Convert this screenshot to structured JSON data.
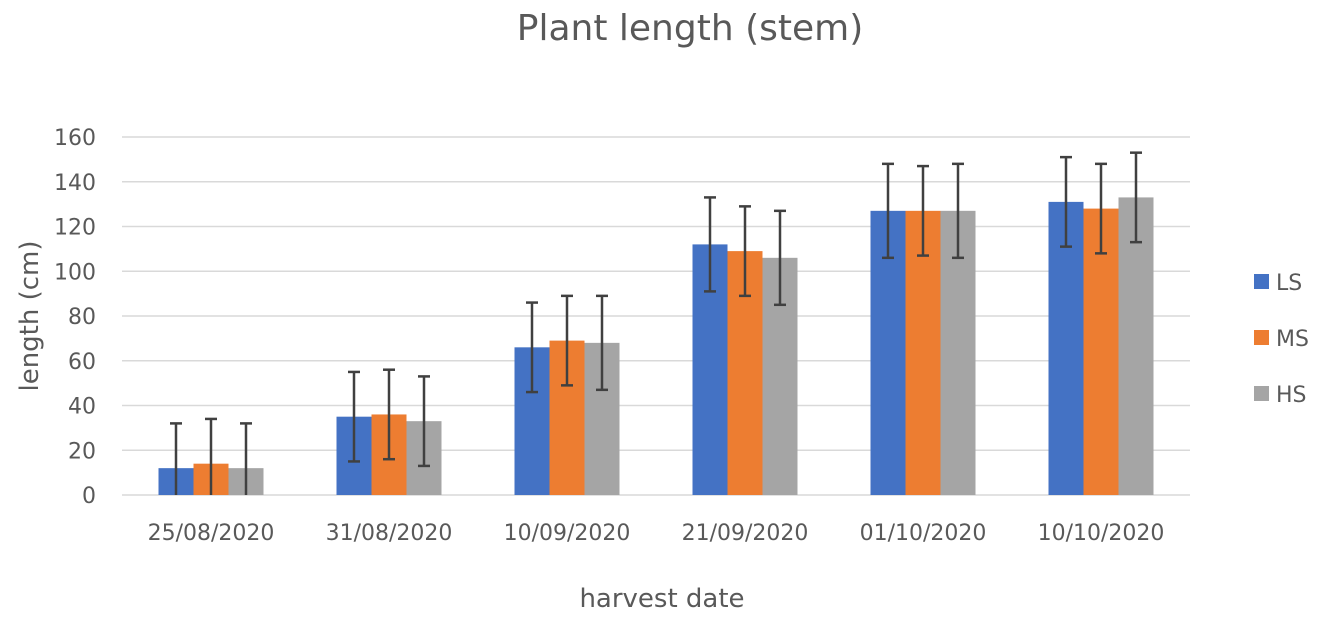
{
  "chart_data": {
    "type": "bar",
    "title": "Plant length (stem)",
    "xlabel": "harvest date",
    "ylabel": "length (cm)",
    "ylim": [
      0,
      160
    ],
    "yticks": [
      0,
      20,
      40,
      60,
      80,
      100,
      120,
      140,
      160
    ],
    "grid": true,
    "legend_position": "right",
    "categories": [
      "25/08/2020",
      "31/08/2020",
      "10/09/2020",
      "21/09/2020",
      "01/10/2020",
      "10/10/2020"
    ],
    "series": [
      {
        "name": "LS",
        "color": "#4472c4",
        "values": [
          12,
          35,
          66,
          112,
          127,
          131
        ],
        "errors": [
          20,
          20,
          20,
          21,
          21,
          20
        ]
      },
      {
        "name": "MS",
        "color": "#ed7d31",
        "values": [
          14,
          36,
          69,
          109,
          127,
          128
        ],
        "errors": [
          20,
          20,
          20,
          20,
          20,
          20
        ]
      },
      {
        "name": "HS",
        "color": "#a5a5a5",
        "values": [
          12,
          33,
          68,
          106,
          127,
          133
        ],
        "errors": [
          20,
          20,
          21,
          21,
          21,
          20
        ]
      }
    ]
  }
}
